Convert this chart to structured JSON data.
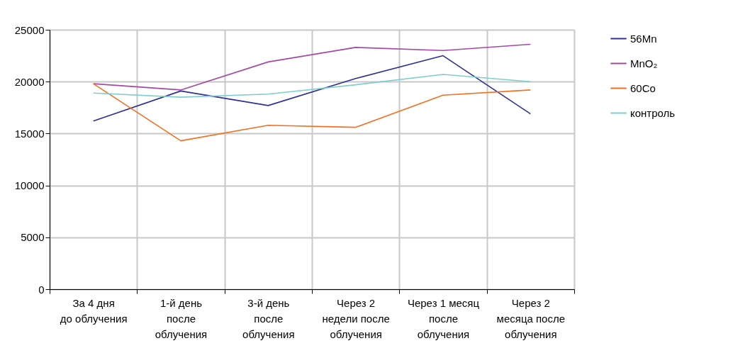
{
  "chart_data": {
    "type": "line",
    "categories": [
      "За 4 дня\nдо облучения",
      "1-й день\nпосле\nоблучения",
      "3-й день\nпосле\nоблучения",
      "Через 2\nнедели после\nоблучения",
      "Через 1 месяц\nпосле\nоблучения",
      "Через 2\nмесяца после\nоблучения"
    ],
    "series": [
      {
        "name": "56Mn",
        "color": "#2e3192",
        "values": [
          16200,
          19100,
          17700,
          20300,
          22500,
          16900
        ]
      },
      {
        "name": "MnO₂",
        "color": "#a349a4",
        "values": [
          19800,
          19200,
          21900,
          23300,
          23000,
          23600
        ]
      },
      {
        "name": "60Co",
        "color": "#f37021",
        "values": [
          19800,
          14300,
          15800,
          15600,
          18700,
          19200
        ]
      },
      {
        "name": "контроль",
        "color": "#7fcdcd",
        "values": [
          18900,
          18500,
          18800,
          19700,
          20700,
          20000
        ]
      }
    ],
    "ylim": [
      0,
      25000
    ],
    "yticks": [
      0,
      5000,
      10000,
      15000,
      20000,
      25000
    ],
    "grid": true,
    "legend": "right",
    "marker": "none",
    "line_style": "solid"
  }
}
